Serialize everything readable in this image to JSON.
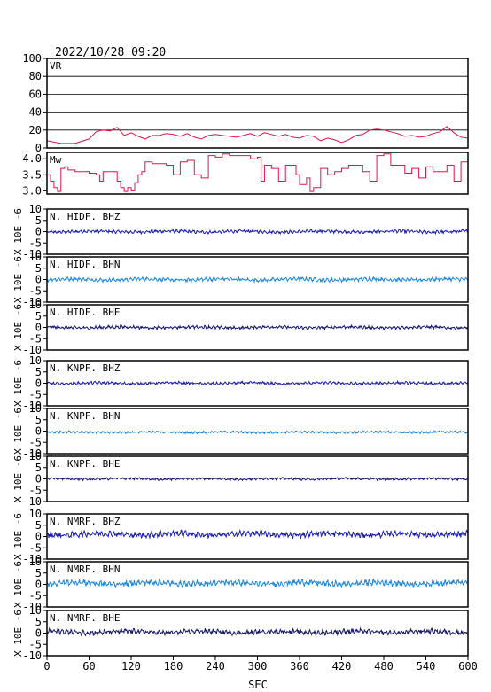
{
  "header": {
    "datetime": "2022/10/28 09:20"
  },
  "chart_data": {
    "type": "line",
    "xlabel": "SEC",
    "xlim": [
      0,
      600
    ],
    "xticks": [
      0,
      60,
      120,
      180,
      240,
      300,
      360,
      420,
      480,
      540,
      600
    ],
    "panels": [
      {
        "label": "VR",
        "ylim": [
          0,
          100
        ],
        "yticks": [
          0,
          20,
          40,
          60,
          80,
          100
        ],
        "grid": true,
        "color": "#e0144a",
        "x": [
          0,
          20,
          40,
          60,
          70,
          80,
          90,
          100,
          110,
          120,
          130,
          140,
          150,
          160,
          170,
          180,
          190,
          200,
          210,
          220,
          230,
          240,
          250,
          260,
          270,
          280,
          290,
          300,
          310,
          320,
          330,
          340,
          350,
          360,
          370,
          380,
          390,
          400,
          410,
          420,
          430,
          440,
          450,
          460,
          470,
          480,
          490,
          500,
          510,
          520,
          530,
          540,
          550,
          560,
          570,
          580,
          590,
          600
        ],
        "values": [
          8,
          5,
          5,
          10,
          18,
          20,
          19,
          23,
          14,
          17,
          13,
          10,
          14,
          14,
          16,
          15,
          13,
          16,
          12,
          10,
          14,
          15,
          14,
          13,
          12,
          14,
          16,
          13,
          17,
          15,
          13,
          15,
          12,
          11,
          14,
          13,
          8,
          11,
          9,
          6,
          9,
          14,
          15,
          20,
          21,
          20,
          18,
          16,
          13,
          14,
          12,
          13,
          16,
          18,
          24,
          17,
          12,
          11
        ]
      },
      {
        "label": "Mw",
        "ylim": [
          2.9,
          4.2
        ],
        "yticks": [
          3.0,
          3.5,
          4.0
        ],
        "grid": false,
        "color": "#e0144a",
        "x": [
          0,
          5,
          10,
          15,
          20,
          25,
          30,
          40,
          50,
          60,
          70,
          75,
          80,
          90,
          100,
          105,
          110,
          115,
          120,
          125,
          130,
          135,
          140,
          150,
          160,
          170,
          180,
          190,
          200,
          210,
          220,
          230,
          240,
          250,
          260,
          270,
          280,
          290,
          300,
          305,
          310,
          320,
          330,
          340,
          350,
          355,
          360,
          370,
          375,
          380,
          390,
          400,
          410,
          420,
          430,
          440,
          450,
          460,
          470,
          480,
          490,
          500,
          510,
          520,
          530,
          540,
          550,
          560,
          570,
          580,
          590,
          600
        ],
        "values": [
          3.5,
          3.3,
          3.1,
          2.98,
          3.7,
          3.75,
          3.65,
          3.6,
          3.6,
          3.55,
          3.5,
          3.3,
          3.6,
          3.6,
          3.3,
          3.1,
          2.98,
          3.1,
          3.0,
          3.25,
          3.5,
          3.6,
          3.9,
          3.85,
          3.85,
          3.8,
          3.5,
          3.9,
          3.95,
          3.5,
          3.4,
          4.1,
          4.05,
          4.15,
          4.1,
          4.1,
          4.1,
          4.0,
          4.05,
          3.3,
          3.8,
          3.7,
          3.3,
          3.8,
          3.8,
          3.5,
          3.2,
          3.4,
          2.98,
          3.1,
          3.7,
          3.5,
          3.6,
          3.7,
          3.8,
          3.8,
          3.6,
          3.3,
          4.1,
          4.15,
          3.8,
          3.8,
          3.55,
          3.7,
          3.4,
          3.75,
          3.6,
          3.6,
          3.8,
          3.3,
          3.9,
          4.1
        ]
      },
      {
        "label": "N. HIDF. BHZ",
        "ylim": [
          -10,
          10
        ],
        "yticks": [
          -10,
          -5,
          0,
          5,
          10
        ],
        "color": "#1a1ab4",
        "amplitude": 0.7,
        "offset": 0
      },
      {
        "label": "N. HIDF. BHN",
        "ylim": [
          -10,
          10
        ],
        "yticks": [
          -10,
          -5,
          0,
          5,
          10
        ],
        "color": "#1a88e0",
        "amplitude": 0.8,
        "offset": 0
      },
      {
        "label": "N. HIDF. BHE",
        "ylim": [
          -10,
          10
        ],
        "yticks": [
          -10,
          -5,
          0,
          5,
          10
        ],
        "color": "#14146e",
        "amplitude": 0.7,
        "offset": 0
      },
      {
        "label": "N. KNPF. BHZ",
        "ylim": [
          -10,
          10
        ],
        "yticks": [
          -10,
          -5,
          0,
          5,
          10
        ],
        "color": "#1a1ab4",
        "amplitude": 0.6,
        "offset": 0
      },
      {
        "label": "N. KNPF. BHN",
        "ylim": [
          -10,
          10
        ],
        "yticks": [
          -10,
          -5,
          0,
          5,
          10
        ],
        "color": "#1a88e0",
        "amplitude": 0.5,
        "offset": -0.5
      },
      {
        "label": "N. KNPF. BHE",
        "ylim": [
          -10,
          10
        ],
        "yticks": [
          -10,
          -5,
          0,
          5,
          10
        ],
        "color": "#14146e",
        "amplitude": 0.5,
        "offset": 0
      },
      {
        "label": "N. NMRF. BHZ",
        "ylim": [
          -10,
          10
        ],
        "yticks": [
          -10,
          -5,
          0,
          5,
          10
        ],
        "color": "#1a1ab4",
        "amplitude": 1.3,
        "offset": 1
      },
      {
        "label": "N. NMRF. BHN",
        "ylim": [
          -10,
          10
        ],
        "yticks": [
          -10,
          -5,
          0,
          5,
          10
        ],
        "color": "#1a88e0",
        "amplitude": 1.3,
        "offset": 0.5
      },
      {
        "label": "N. NMRF. BHE",
        "ylim": [
          -10,
          10
        ],
        "yticks": [
          -10,
          -5,
          0,
          5,
          10
        ],
        "color": "#14146e",
        "amplitude": 1.1,
        "offset": 0.5
      }
    ],
    "ylabel_waveforms": "X 10E -6"
  }
}
